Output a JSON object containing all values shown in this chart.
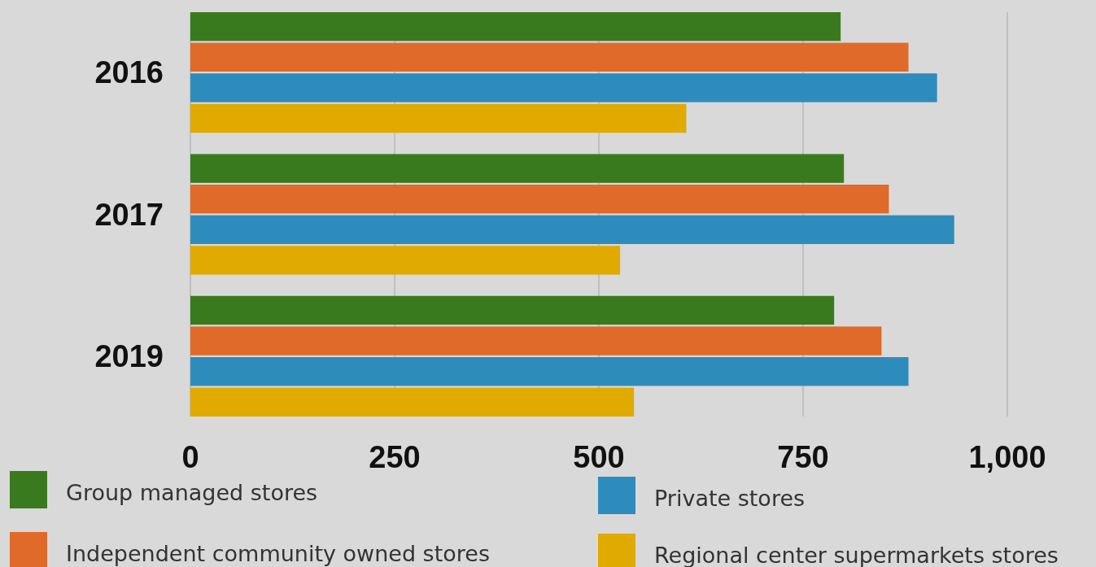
{
  "chart_data": {
    "type": "bar",
    "orientation": "horizontal",
    "categories": [
      "2016",
      "2017",
      "2019"
    ],
    "series": [
      {
        "name": "Group managed stores",
        "color": "#3a7a1e",
        "values": [
          796,
          800,
          788
        ]
      },
      {
        "name": "Independent community owned stores",
        "color": "#df6a2a",
        "values": [
          879,
          855,
          846
        ]
      },
      {
        "name": "Private stores",
        "color": "#2e8cbc",
        "values": [
          914,
          935,
          879
        ]
      },
      {
        "name": "Regional center supermarkets stores",
        "color": "#e0aa00",
        "values": [
          607,
          526,
          543
        ]
      }
    ],
    "xlim": [
      0,
      1000
    ],
    "xticks": [
      0,
      250,
      500,
      750,
      {
        "value": 1000,
        "label": "1,000"
      }
    ],
    "grid": "x",
    "legend": "bottom"
  }
}
